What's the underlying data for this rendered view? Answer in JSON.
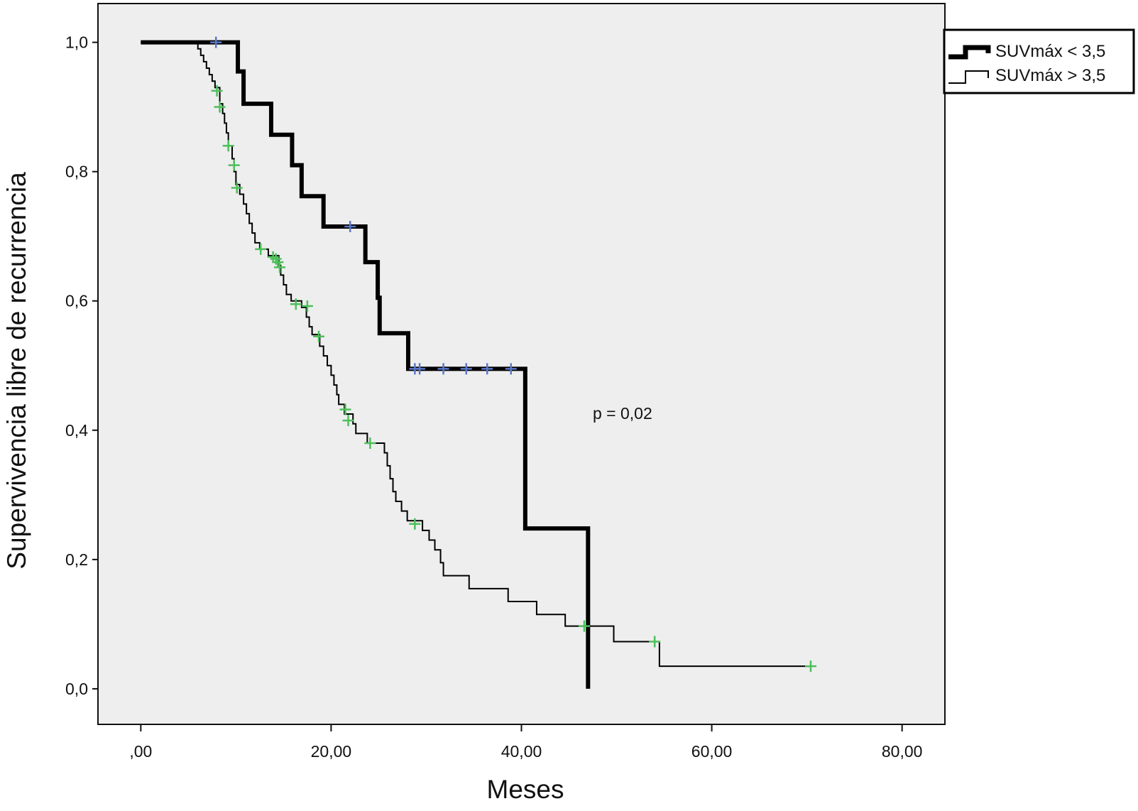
{
  "chart_data": {
    "type": "line",
    "subtype": "kaplan-meier-step",
    "title": "",
    "xlabel": "Meses",
    "ylabel": "Supervivencia libre de recurrencia",
    "xlim": [
      -4.5,
      84.5
    ],
    "ylim": [
      -0.055,
      1.06
    ],
    "x_ticks": [
      0,
      20,
      40,
      60,
      80
    ],
    "x_tick_labels": [
      ",00",
      "20,00",
      "40,00",
      "60,00",
      "80,00"
    ],
    "y_ticks": [
      0,
      0.2,
      0.4,
      0.6,
      0.8,
      1.0
    ],
    "y_tick_labels": [
      "0,0",
      "0,2",
      "0,4",
      "0,6",
      "0,8",
      "1,0"
    ],
    "grid": false,
    "legend_position": "top-right-outside",
    "background_color": "#eeeeee",
    "annotation": "p = 0,02",
    "series": [
      {
        "name": "SUVmáx < 3,5",
        "color": "#000000",
        "style": "thick",
        "censor_color": "#5b78c8",
        "steps": [
          [
            0,
            1.0
          ],
          [
            10.2,
            0.955
          ],
          [
            10.8,
            0.905
          ],
          [
            13.7,
            0.857
          ],
          [
            15.9,
            0.81
          ],
          [
            16.9,
            0.762
          ],
          [
            19.2,
            0.715
          ],
          [
            23.6,
            0.66
          ],
          [
            24.9,
            0.605
          ],
          [
            25.1,
            0.55
          ],
          [
            28.1,
            0.495
          ],
          [
            40.4,
            0.248
          ],
          [
            47.0,
            0.0
          ]
        ],
        "censored": [
          [
            7.9,
            1.0
          ],
          [
            22.0,
            0.715
          ],
          [
            28.8,
            0.495
          ],
          [
            29.3,
            0.495
          ],
          [
            31.8,
            0.495
          ],
          [
            34.2,
            0.495
          ],
          [
            36.4,
            0.495
          ],
          [
            38.9,
            0.495
          ]
        ]
      },
      {
        "name": "SUVmáx > 3,5",
        "color": "#000000",
        "style": "thin",
        "censor_color": "#4dbf5a",
        "steps": [
          [
            0,
            1.0
          ],
          [
            6.0,
            0.99
          ],
          [
            6.3,
            0.98
          ],
          [
            6.6,
            0.97
          ],
          [
            6.9,
            0.96
          ],
          [
            7.2,
            0.95
          ],
          [
            7.5,
            0.94
          ],
          [
            7.8,
            0.93
          ],
          [
            8.3,
            0.905
          ],
          [
            8.6,
            0.89
          ],
          [
            8.8,
            0.875
          ],
          [
            9.0,
            0.86
          ],
          [
            9.2,
            0.84
          ],
          [
            9.6,
            0.82
          ],
          [
            9.8,
            0.8
          ],
          [
            10.0,
            0.78
          ],
          [
            10.4,
            0.765
          ],
          [
            10.8,
            0.75
          ],
          [
            11.1,
            0.735
          ],
          [
            11.4,
            0.72
          ],
          [
            11.7,
            0.705
          ],
          [
            12.0,
            0.69
          ],
          [
            12.5,
            0.68
          ],
          [
            13.4,
            0.67
          ],
          [
            14.5,
            0.655
          ],
          [
            14.7,
            0.64
          ],
          [
            15.0,
            0.625
          ],
          [
            15.3,
            0.61
          ],
          [
            15.8,
            0.6
          ],
          [
            16.9,
            0.59
          ],
          [
            17.4,
            0.575
          ],
          [
            17.7,
            0.56
          ],
          [
            18.0,
            0.548
          ],
          [
            18.8,
            0.53
          ],
          [
            19.2,
            0.515
          ],
          [
            19.6,
            0.5
          ],
          [
            20.0,
            0.485
          ],
          [
            20.3,
            0.47
          ],
          [
            20.6,
            0.455
          ],
          [
            20.8,
            0.44
          ],
          [
            21.4,
            0.425
          ],
          [
            22.3,
            0.41
          ],
          [
            22.6,
            0.395
          ],
          [
            23.8,
            0.38
          ],
          [
            25.6,
            0.365
          ],
          [
            25.9,
            0.345
          ],
          [
            26.2,
            0.325
          ],
          [
            26.5,
            0.305
          ],
          [
            26.8,
            0.29
          ],
          [
            27.4,
            0.275
          ],
          [
            28.0,
            0.26
          ],
          [
            29.6,
            0.245
          ],
          [
            30.3,
            0.23
          ],
          [
            30.9,
            0.215
          ],
          [
            31.5,
            0.195
          ],
          [
            31.8,
            0.175
          ],
          [
            34.5,
            0.155
          ],
          [
            38.6,
            0.135
          ],
          [
            41.6,
            0.115
          ],
          [
            44.6,
            0.097
          ],
          [
            49.7,
            0.073
          ],
          [
            54.5,
            0.035
          ]
        ],
        "censored": [
          [
            8.0,
            0.925
          ],
          [
            8.3,
            0.9
          ],
          [
            9.2,
            0.84
          ],
          [
            9.8,
            0.81
          ],
          [
            10.1,
            0.775
          ],
          [
            12.6,
            0.68
          ],
          [
            13.9,
            0.668
          ],
          [
            14.2,
            0.665
          ],
          [
            14.4,
            0.66
          ],
          [
            14.6,
            0.652
          ],
          [
            16.3,
            0.595
          ],
          [
            17.5,
            0.592
          ],
          [
            18.7,
            0.545
          ],
          [
            21.5,
            0.432
          ],
          [
            21.8,
            0.415
          ],
          [
            24.1,
            0.38
          ],
          [
            28.8,
            0.255
          ],
          [
            46.6,
            0.097
          ],
          [
            54.0,
            0.073
          ],
          [
            70.4,
            0.035
          ]
        ]
      }
    ]
  }
}
